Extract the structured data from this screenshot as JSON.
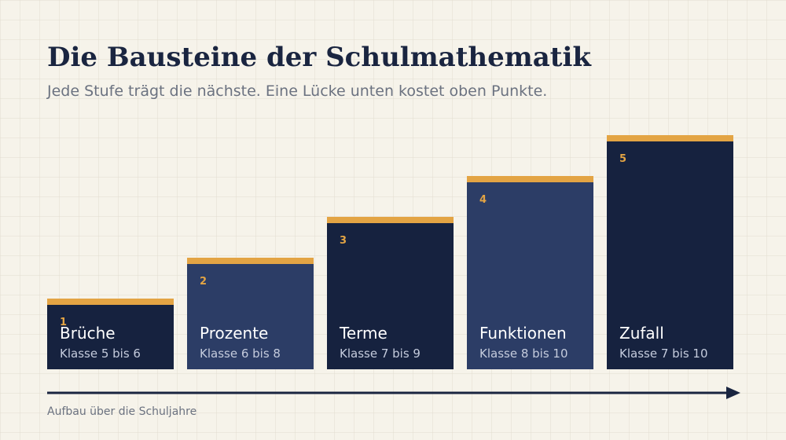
{
  "header": {
    "title": "Die Bausteine der Schulmathematik",
    "subtitle": "Jede Stufe trägt die nächste. Eine Lücke unten kostet oben Punkte."
  },
  "steps": [
    {
      "number": "1",
      "name": "Brüche",
      "grades": "Klasse 5 bis 6"
    },
    {
      "number": "2",
      "name": "Prozente",
      "grades": "Klasse 6 bis 8"
    },
    {
      "number": "3",
      "name": "Terme",
      "grades": "Klasse 7 bis 9"
    },
    {
      "number": "4",
      "name": "Funktionen",
      "grades": "Klasse 8 bis 10"
    },
    {
      "number": "5",
      "name": "Zufall",
      "grades": "Klasse 7 bis 10"
    }
  ],
  "footer": {
    "caption": "Aufbau über die Schuljahre"
  }
}
